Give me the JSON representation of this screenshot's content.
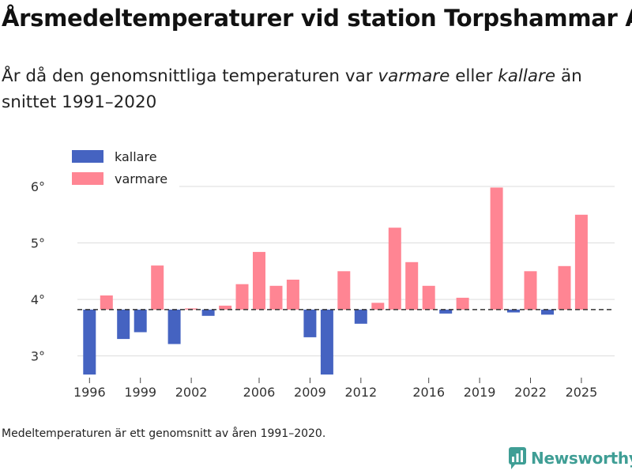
{
  "title": "Årsmedeltemperaturer vid station Torpshammar A",
  "subtitle": {
    "part1": "År då den genomsnittliga temperaturen var ",
    "warmer": "varmare",
    "part2": " eller ",
    "colder": "kallare",
    "part3": " än snittet 1991–2020"
  },
  "footnote": "Medeltemperaturen är ett genomsnitt av åren 1991–2020.",
  "brand": {
    "name": "Newsworthy",
    "icon": "newsworthy-logo-icon"
  },
  "colors": {
    "colder": "#4563c1",
    "warmer": "#ff8593",
    "grid": "#dddddd",
    "baseline": "#333333",
    "brand": "#3f9e95"
  },
  "chart_data": {
    "type": "bar",
    "title": "Årsmedeltemperaturer vid station Torpshammar A",
    "xlabel": "",
    "ylabel": "",
    "baseline": 3.82,
    "ylim": [
      2.6,
      6.2
    ],
    "yticks": [
      3,
      4,
      5,
      6
    ],
    "ytick_labels": [
      "3°",
      "4°",
      "5°",
      "6°"
    ],
    "xticks": [
      1996,
      1999,
      2002,
      2006,
      2009,
      2012,
      2016,
      2019,
      2022,
      2025
    ],
    "xtick_labels": [
      "1996",
      "1999",
      "2002",
      "2006",
      "2009",
      "2012",
      "2016",
      "2019",
      "2022",
      "2025"
    ],
    "legend": [
      {
        "name": "kallare",
        "color": "#4563c1"
      },
      {
        "name": "varmare",
        "color": "#ff8593"
      }
    ],
    "legend_position": "top-left",
    "categories": [
      1996,
      1997,
      1998,
      1999,
      2000,
      2001,
      2002,
      2003,
      2004,
      2005,
      2006,
      2007,
      2008,
      2009,
      2010,
      2011,
      2012,
      2013,
      2014,
      2015,
      2016,
      2017,
      2018,
      2019,
      2020,
      2021,
      2022,
      2023,
      2024,
      2025
    ],
    "values": [
      2.67,
      4.07,
      3.3,
      3.42,
      4.6,
      3.21,
      3.84,
      3.71,
      3.89,
      4.27,
      4.84,
      4.24,
      4.35,
      3.33,
      2.67,
      4.5,
      3.57,
      3.94,
      5.27,
      4.66,
      4.24,
      3.75,
      4.03,
      null,
      5.98,
      3.77,
      4.5,
      3.73,
      4.59,
      5.5
    ]
  }
}
